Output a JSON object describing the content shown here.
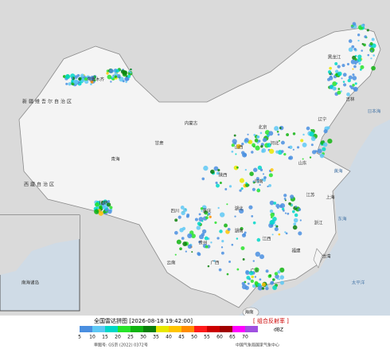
{
  "header": {
    "title": "全国雷达拼图 [2026-08-18 19:42:00]",
    "product": "[ 组合反射率 ]",
    "unit": "dBZ"
  },
  "legend": {
    "ticks": [
      5,
      10,
      15,
      20,
      25,
      30,
      35,
      40,
      45,
      50,
      55,
      60,
      65,
      70
    ],
    "colors": [
      "#4a8fe0",
      "#5ec8f5",
      "#00d7c8",
      "#27e32a",
      "#10b410",
      "#0a7f0a",
      "#e8e800",
      "#ffc400",
      "#ff8c00",
      "#ff1a1a",
      "#cc0000",
      "#a00000",
      "#ff00ff",
      "#a050e0"
    ]
  },
  "footer": {
    "approval": "审图号: GS京 (2022) 0372号",
    "source": "中国气象局国家气象中心"
  },
  "map": {
    "labels": [
      "新疆维吾尔自治区",
      "西藏自治区",
      "青海",
      "内蒙古",
      "黑龙江",
      "吉林",
      "辽宁",
      "北京",
      "河北",
      "山西",
      "陕西",
      "甘肃",
      "四川",
      "湖北",
      "河南",
      "山东",
      "江苏",
      "上海",
      "浙江",
      "湖南",
      "江西",
      "福建",
      "广东",
      "广西",
      "云南",
      "贵州",
      "重庆",
      "台湾",
      "海南",
      "日本海",
      "黄海",
      "东海",
      "太平洋",
      "乌鲁木齐",
      "拉萨",
      "南海诸岛"
    ]
  }
}
